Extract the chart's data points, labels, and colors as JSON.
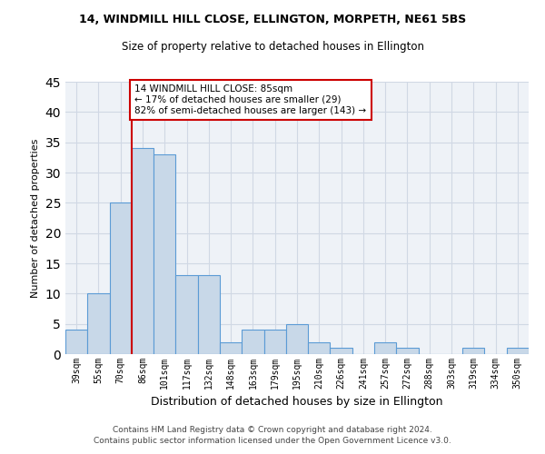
{
  "title1": "14, WINDMILL HILL CLOSE, ELLINGTON, MORPETH, NE61 5BS",
  "title2": "Size of property relative to detached houses in Ellington",
  "xlabel": "Distribution of detached houses by size in Ellington",
  "ylabel": "Number of detached properties",
  "bin_labels": [
    "39sqm",
    "55sqm",
    "70sqm",
    "86sqm",
    "101sqm",
    "117sqm",
    "132sqm",
    "148sqm",
    "163sqm",
    "179sqm",
    "195sqm",
    "210sqm",
    "226sqm",
    "241sqm",
    "257sqm",
    "272sqm",
    "288sqm",
    "303sqm",
    "319sqm",
    "334sqm",
    "350sqm"
  ],
  "bar_heights": [
    4,
    10,
    25,
    34,
    33,
    13,
    13,
    2,
    4,
    4,
    5,
    2,
    1,
    0,
    2,
    1,
    0,
    0,
    1,
    0,
    1
  ],
  "bar_color": "#c8d8e8",
  "bar_edge_color": "#5b9bd5",
  "vline_x_idx": 3,
  "vline_color": "#cc0000",
  "ylim": [
    0,
    45
  ],
  "yticks": [
    0,
    5,
    10,
    15,
    20,
    25,
    30,
    35,
    40,
    45
  ],
  "annotation_text": "14 WINDMILL HILL CLOSE: 85sqm\n← 17% of detached houses are smaller (29)\n82% of semi-detached houses are larger (143) →",
  "annotation_box_color": "#ffffff",
  "annotation_box_edge": "#cc0000",
  "footer": "Contains HM Land Registry data © Crown copyright and database right 2024.\nContains public sector information licensed under the Open Government Licence v3.0.",
  "bg_color": "#eef2f7",
  "grid_color": "#d0d8e4"
}
